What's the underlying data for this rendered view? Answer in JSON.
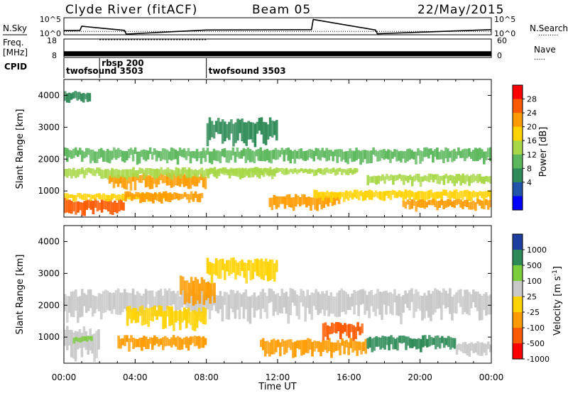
{
  "header": {
    "station": "Clyde River (fitACF)",
    "beam": "Beam 05",
    "date": "22/May/2015"
  },
  "chart_data": [
    {
      "type": "line",
      "panel": "noise",
      "left_label": "N.Sky",
      "right_label": "N.Search",
      "left_ticks": [
        "10^5",
        "10^0"
      ],
      "right_ticks": [
        "10^5",
        "10^0"
      ],
      "x_ticks": [
        "00:00",
        "04:00",
        "08:00",
        "12:00",
        "16:00",
        "20:00",
        "00:00"
      ],
      "xlim_hours": [
        0,
        24
      ],
      "series": [
        {
          "name": "N.Sky",
          "style": "solid",
          "x_hours": [
            0,
            0.9,
            1.0,
            3.4,
            3.5,
            8.0,
            13.9,
            14.0,
            17.5,
            17.6,
            24
          ],
          "values_log": [
            1.2,
            1.3,
            2.5,
            1.3,
            0.2,
            1.4,
            1.5,
            4.5,
            1.4,
            0.3,
            1.5
          ]
        },
        {
          "name": "N.Search",
          "style": "dotted",
          "x_hours": [
            0,
            24
          ],
          "values_log": [
            1.0,
            1.0
          ]
        }
      ]
    },
    {
      "type": "line",
      "panel": "frequency",
      "left_label_1": "Freq.",
      "left_label_2": "[MHz]",
      "right_label": "Nave",
      "left_ticks": [
        "18",
        "8"
      ],
      "right_ticks": [
        "60",
        "0"
      ],
      "series": [
        {
          "name": "Freq.",
          "style": "thick",
          "x_hours": [
            0,
            2.0,
            8.0,
            24
          ],
          "values": [
            10,
            10,
            10,
            10
          ]
        },
        {
          "name": "Nave",
          "style": "dotted",
          "x_hours": [
            2.0,
            3.3,
            3.3,
            8.0
          ],
          "values": [
            58,
            58,
            58,
            58
          ]
        }
      ]
    },
    {
      "type": "table",
      "panel": "cpid",
      "label": "CPID",
      "segments": [
        {
          "start_hour": 0,
          "label": "twofsound 3503"
        },
        {
          "start_hour": 2.0,
          "label": "rbsp 200"
        },
        {
          "start_hour": 8.0,
          "label": "twofsound 3503"
        }
      ]
    },
    {
      "type": "heatmap",
      "panel": "power",
      "ylabel": "Slant Range [km]",
      "y_ticks": [
        1000,
        2000,
        3000,
        4000
      ],
      "ylim_km": [
        180,
        4500
      ],
      "xlim_hours": [
        0,
        24
      ],
      "x_ticks": [
        "00:00",
        "04:00",
        "08:00",
        "12:00",
        "16:00",
        "20:00",
        "00:00"
      ],
      "colorbar": {
        "label": "Power [dB]",
        "ticks": [
          "28",
          "24",
          "20",
          "16",
          "12",
          "8",
          "4"
        ],
        "colors": [
          "#ff0000",
          "#ff5a00",
          "#ff9b00",
          "#ffd200",
          "#a8d848",
          "#5cb85c",
          "#2f8b57",
          "#2255aa",
          "#0000ff"
        ]
      },
      "bands": [
        {
          "t0": 0.0,
          "t1": 3.4,
          "r0": 250,
          "r1": 700,
          "value": 28
        },
        {
          "t0": 0.0,
          "t1": 6.0,
          "r0": 700,
          "r1": 900,
          "value": 20
        },
        {
          "t0": 3.4,
          "t1": 7.8,
          "r0": 650,
          "r1": 950,
          "value": 24
        },
        {
          "t0": 2.5,
          "t1": 8.0,
          "r0": 1100,
          "r1": 1500,
          "value": 22
        },
        {
          "t0": 0.0,
          "t1": 12.0,
          "r0": 1400,
          "r1": 1700,
          "value": 14
        },
        {
          "t0": 0.0,
          "t1": 24.0,
          "r0": 1900,
          "r1": 2300,
          "value": 12
        },
        {
          "t0": 8.0,
          "t1": 16.5,
          "r0": 1500,
          "r1": 1700,
          "value": 16
        },
        {
          "t0": 11.5,
          "t1": 15.5,
          "r0": 450,
          "r1": 850,
          "value": 22
        },
        {
          "t0": 14.0,
          "t1": 24.0,
          "r0": 700,
          "r1": 1000,
          "value": 18
        },
        {
          "t0": 17.0,
          "t1": 24.0,
          "r0": 1200,
          "r1": 1500,
          "value": 16
        },
        {
          "t0": 19.0,
          "t1": 24.0,
          "r0": 400,
          "r1": 700,
          "value": 22
        },
        {
          "t0": 8.0,
          "t1": 12.0,
          "r0": 2500,
          "r1": 3200,
          "value": 6
        },
        {
          "t0": 0.0,
          "t1": 1.5,
          "r0": 3800,
          "r1": 4100,
          "value": 6
        }
      ]
    },
    {
      "type": "heatmap",
      "panel": "velocity",
      "ylabel": "Slant Range [km]",
      "xlabel": "Time UT",
      "y_ticks": [
        1000,
        2000,
        3000,
        4000
      ],
      "ylim_km": [
        180,
        4500
      ],
      "xlim_hours": [
        0,
        24
      ],
      "x_ticks": [
        "00:00",
        "04:00",
        "08:00",
        "12:00",
        "16:00",
        "20:00",
        "00:00"
      ],
      "colorbar": {
        "label": "Velocity [m s-1]",
        "label_main": "Velocity",
        "label_unit": "[m s",
        "label_exp": "-1",
        "label_close": "]",
        "ticks": [
          "1000",
          "500",
          "100",
          "25",
          "-25",
          "-100",
          "-500",
          "-1000"
        ],
        "colors": [
          "#1f3fa0",
          "#2e8b57",
          "#7ccd3c",
          "#c8c8c8",
          "#ffd200",
          "#ff9b00",
          "#ff5a00",
          "#ff0000"
        ]
      },
      "bands": [
        {
          "t0": 0.0,
          "t1": 24.0,
          "r0": 1600,
          "r1": 2400,
          "value": 0
        },
        {
          "t0": 0.0,
          "t1": 2.0,
          "r0": 300,
          "r1": 1200,
          "value": 0
        },
        {
          "t0": 0.5,
          "t1": 1.6,
          "r0": 800,
          "r1": 1000,
          "value": 80
        },
        {
          "t0": 3.0,
          "t1": 8.0,
          "r0": 600,
          "r1": 1000,
          "value": -300
        },
        {
          "t0": 3.5,
          "t1": 8.0,
          "r0": 1300,
          "r1": 1900,
          "value": -90
        },
        {
          "t0": 6.5,
          "t1": 8.5,
          "r0": 2000,
          "r1": 2800,
          "value": -150
        },
        {
          "t0": 11.0,
          "t1": 17.0,
          "r0": 450,
          "r1": 900,
          "value": -200
        },
        {
          "t0": 14.5,
          "t1": 16.8,
          "r0": 900,
          "r1": 1400,
          "value": -600
        },
        {
          "t0": 17.0,
          "t1": 22.0,
          "r0": 600,
          "r1": 1000,
          "value": 200
        },
        {
          "t0": 22.0,
          "t1": 24.0,
          "r0": 400,
          "r1": 800,
          "value": 0
        },
        {
          "t0": 8.0,
          "t1": 12.0,
          "r0": 2800,
          "r1": 3400,
          "value": -60
        }
      ]
    }
  ]
}
